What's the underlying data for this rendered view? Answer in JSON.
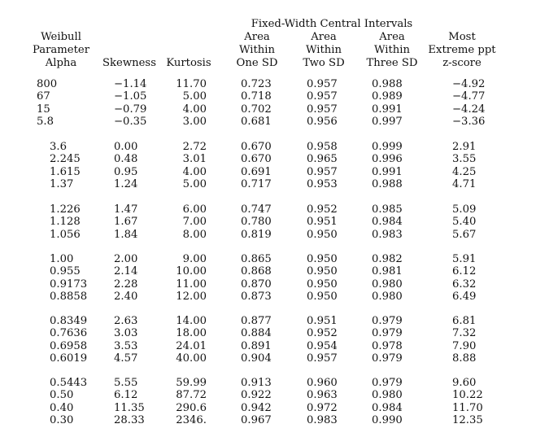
{
  "header": {
    "col_alpha": [
      "Weibull",
      "Parameter",
      "Alpha"
    ],
    "col_skew": "Skewness",
    "col_kurt": "Kurtosis",
    "span_title": "Fixed-Width Central Intervals",
    "col_one": [
      "Area",
      "Within",
      "One SD"
    ],
    "col_two": [
      "Area",
      "Within",
      "Two SD"
    ],
    "col_three": [
      "Area",
      "Within",
      "Three SD"
    ],
    "col_z": [
      "Most",
      "Extreme ppt",
      "z-score"
    ]
  },
  "groups": [
    {
      "rows": [
        [
          "800",
          "−1.14",
          "11.70",
          "0.723",
          "0.957",
          "0.988",
          "−4.92"
        ],
        [
          "67",
          "−1.05",
          "5.00",
          "0.718",
          "0.957",
          "0.989",
          "−4.77"
        ],
        [
          "15",
          "−0.79",
          "4.00",
          "0.702",
          "0.957",
          "0.991",
          "−4.24"
        ],
        [
          "5.8",
          "−0.35",
          "3.00",
          "0.681",
          "0.956",
          "0.997",
          "−3.36"
        ]
      ]
    },
    {
      "rows": [
        [
          "3.6",
          "0.00",
          "2.72",
          "0.670",
          "0.958",
          "0.999",
          "2.91"
        ],
        [
          "2.245",
          "0.48",
          "3.01",
          "0.670",
          "0.965",
          "0.996",
          "3.55"
        ],
        [
          "1.615",
          "0.95",
          "4.00",
          "0.691",
          "0.957",
          "0.991",
          "4.25"
        ],
        [
          "1.37",
          "1.24",
          "5.00",
          "0.717",
          "0.953",
          "0.988",
          "4.71"
        ]
      ]
    },
    {
      "rows": [
        [
          "1.226",
          "1.47",
          "6.00",
          "0.747",
          "0.952",
          "0.985",
          "5.09"
        ],
        [
          "1.128",
          "1.67",
          "7.00",
          "0.780",
          "0.951",
          "0.984",
          "5.40"
        ],
        [
          "1.056",
          "1.84",
          "8.00",
          "0.819",
          "0.950",
          "0.983",
          "5.67"
        ]
      ]
    },
    {
      "rows": [
        [
          "1.00",
          "2.00",
          "9.00",
          "0.865",
          "0.950",
          "0.982",
          "5.91"
        ],
        [
          "0.955",
          "2.14",
          "10.00",
          "0.868",
          "0.950",
          "0.981",
          "6.12"
        ],
        [
          "0.9173",
          "2.28",
          "11.00",
          "0.870",
          "0.950",
          "0.980",
          "6.32"
        ],
        [
          "0.8858",
          "2.40",
          "12.00",
          "0.873",
          "0.950",
          "0.980",
          "6.49"
        ]
      ]
    },
    {
      "rows": [
        [
          "0.8349",
          "2.63",
          "14.00",
          "0.877",
          "0.951",
          "0.979",
          "6.81"
        ],
        [
          "0.7636",
          "3.03",
          "18.00",
          "0.884",
          "0.952",
          "0.979",
          "7.32"
        ],
        [
          "0.6958",
          "3.53",
          "24.01",
          "0.891",
          "0.954",
          "0.978",
          "7.90"
        ],
        [
          "0.6019",
          "4.57",
          "40.00",
          "0.904",
          "0.957",
          "0.979",
          "8.88"
        ]
      ]
    },
    {
      "rows": [
        [
          "0.5443",
          "5.55",
          "59.99",
          "0.913",
          "0.960",
          "0.979",
          "9.60"
        ],
        [
          "0.50",
          "6.12",
          "87.72",
          "0.922",
          "0.963",
          "0.980",
          "10.22"
        ],
        [
          "0.40",
          "11.35",
          "290.6",
          "0.942",
          "0.972",
          "0.984",
          "11.70"
        ],
        [
          "0.30",
          "28.33",
          "2346.",
          "0.967",
          "0.983",
          "0.990",
          "12.35"
        ]
      ]
    }
  ]
}
